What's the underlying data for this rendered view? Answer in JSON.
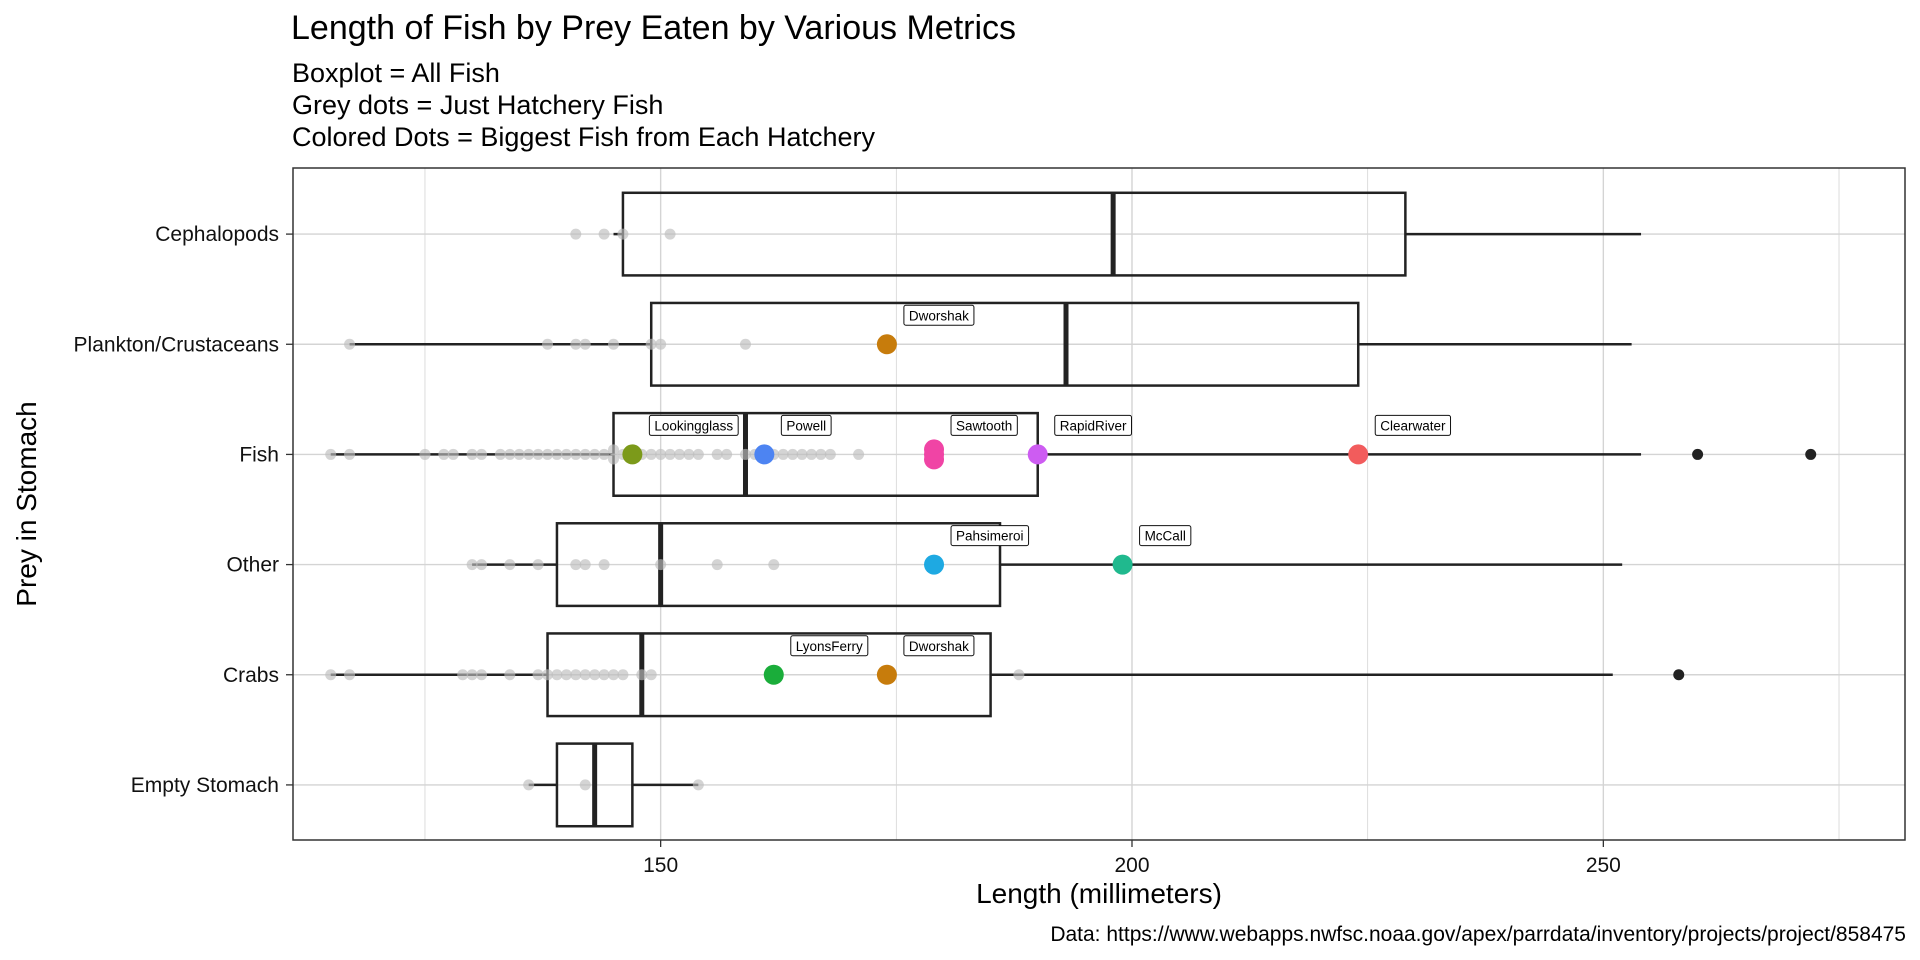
{
  "chart_data": {
    "type": "boxplot",
    "title": "Length of Fish by Prey Eaten by Various Metrics",
    "subtitle": [
      "Boxplot = All Fish",
      "Grey dots = Just Hatchery Fish",
      "Colored Dots = Biggest Fish from Each Hatchery"
    ],
    "xlabel": "Length (millimeters)",
    "ylabel": "Prey in Stomach",
    "caption": "Data: https://www.webapps.nwfsc.noaa.gov/apex/parrdata/inventory/projects/project/858475",
    "xlim": [
      111,
      282
    ],
    "xticks": [
      150,
      200,
      250
    ],
    "grid": true,
    "categories": [
      "Cephalopods",
      "Plankton/Crustaceans",
      "Fish",
      "Other",
      "Crabs",
      "Empty Stomach"
    ],
    "boxes": [
      {
        "category": "Cephalopods",
        "min": 145,
        "q1": 146,
        "median": 198,
        "q3": 229,
        "max": 254,
        "outliers": []
      },
      {
        "category": "Plankton/Crustaceans",
        "min": 117,
        "q1": 149,
        "median": 193,
        "q3": 224,
        "max": 253,
        "outliers": []
      },
      {
        "category": "Fish",
        "min": 115,
        "q1": 145,
        "median": 159,
        "q3": 190,
        "max": 254,
        "outliers": [
          260,
          272
        ]
      },
      {
        "category": "Other",
        "min": 130,
        "q1": 139,
        "median": 150,
        "q3": 186,
        "max": 252,
        "outliers": []
      },
      {
        "category": "Crabs",
        "min": 115,
        "q1": 138,
        "median": 148,
        "q3": 185,
        "max": 251,
        "outliers": [
          258
        ]
      },
      {
        "category": "Empty Stomach",
        "min": 136,
        "q1": 139,
        "median": 143,
        "q3": 147,
        "max": 154,
        "outliers": []
      }
    ],
    "hatchery_points": [
      {
        "category": "Cephalopods",
        "values": [
          141,
          144,
          146,
          151
        ]
      },
      {
        "category": "Plankton/Crustaceans",
        "values": [
          117,
          138,
          141,
          142,
          145,
          149,
          150,
          159
        ]
      },
      {
        "category": "Fish",
        "values": [
          115,
          117,
          125,
          127,
          128,
          130,
          131,
          133,
          134,
          135,
          136,
          137,
          138,
          139,
          140,
          141,
          142,
          143,
          144,
          145,
          145,
          146,
          148,
          149,
          150,
          151,
          152,
          153,
          154,
          156,
          157,
          159,
          160,
          161,
          162,
          163,
          164,
          165,
          166,
          167,
          168,
          171
        ]
      },
      {
        "category": "Other",
        "values": [
          130,
          131,
          134,
          137,
          141,
          142,
          144,
          150,
          156,
          162
        ]
      },
      {
        "category": "Crabs",
        "values": [
          115,
          117,
          129,
          130,
          131,
          134,
          137,
          138,
          139,
          140,
          141,
          142,
          143,
          144,
          145,
          146,
          148,
          149,
          188
        ]
      },
      {
        "category": "Empty Stomach",
        "values": [
          136,
          142,
          154
        ]
      }
    ],
    "biggest_fish": [
      {
        "hatchery": "Dworshak",
        "category": "Plankton/Crustaceans",
        "length": 174,
        "color": "#c77c0c"
      },
      {
        "hatchery": "Lookingglass",
        "category": "Fish",
        "length": 147,
        "color": "#7c9a1a"
      },
      {
        "hatchery": "Powell",
        "category": "Fish",
        "length": 161,
        "color": "#4d84f2"
      },
      {
        "hatchery": "Sawtooth",
        "category": "Fish",
        "length": 179,
        "color": "#f044a5"
      },
      {
        "hatchery": "RapidRiver",
        "category": "Fish",
        "length": 190,
        "color": "#cd5cf2"
      },
      {
        "hatchery": "Clearwater",
        "category": "Fish",
        "length": 224,
        "color": "#f25c5c"
      },
      {
        "hatchery": "Pahsimeroi",
        "category": "Other",
        "length": 179,
        "color": "#1ea9e2"
      },
      {
        "hatchery": "McCall",
        "category": "Other",
        "length": 199,
        "color": "#20b98e"
      },
      {
        "hatchery": "LyonsFerry",
        "category": "Crabs",
        "length": 162,
        "color": "#1aad3a"
      },
      {
        "hatchery": "Dworshak",
        "category": "Crabs",
        "length": 174,
        "color": "#c77c0c"
      }
    ],
    "colors": {
      "box": "#222222",
      "grey_dot": "#bdbdbd",
      "grid": "#d4d4d4",
      "panel_border": "#333333",
      "outlier": "#222222"
    }
  }
}
